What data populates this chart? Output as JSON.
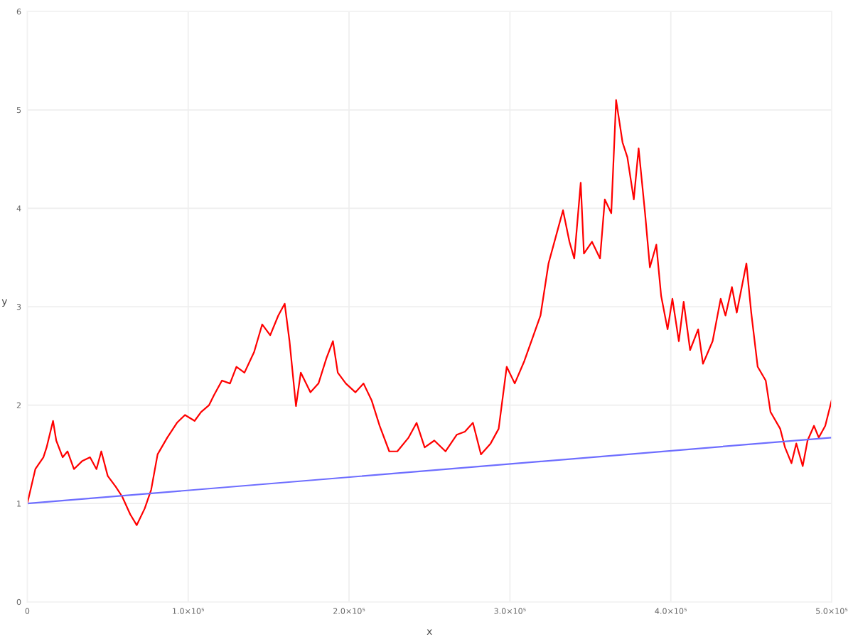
{
  "chart_data": {
    "type": "line",
    "xlabel": "x",
    "ylabel": "y",
    "xlim": [
      0,
      500000
    ],
    "ylim": [
      0,
      6
    ],
    "xticks": [
      0,
      {
        "value": 100000,
        "label": "1.0×10⁵"
      },
      {
        "value": 200000,
        "label": "2.0×10⁵"
      },
      {
        "value": 300000,
        "label": "3.0×10⁵"
      },
      {
        "value": 400000,
        "label": "4.0×10⁵"
      },
      {
        "value": 500000,
        "label": "5.0×10⁵"
      }
    ],
    "yticks": [
      0,
      1,
      2,
      3,
      4,
      5,
      6
    ],
    "grid": true,
    "legend": false,
    "marker": "none",
    "line_style": "solid",
    "series": [
      {
        "color": "#ff0000",
        "x": [
          0,
          5000,
          10000,
          12000,
          16000,
          18000,
          22000,
          25000,
          29000,
          34000,
          39000,
          43000,
          46000,
          50000,
          55000,
          59000,
          64000,
          68000,
          73000,
          77000,
          81000,
          87000,
          93000,
          98000,
          104000,
          108000,
          113000,
          116000,
          121000,
          126000,
          130000,
          135000,
          141000,
          146000,
          151000,
          156000,
          160000,
          163000,
          167000,
          170000,
          176000,
          181000,
          186000,
          190000,
          193000,
          198000,
          204000,
          209000,
          214000,
          219000,
          225000,
          230000,
          237000,
          242000,
          247000,
          253000,
          260000,
          267000,
          272000,
          277000,
          282000,
          288000,
          293000,
          298000,
          303000,
          309000,
          314000,
          319000,
          324000,
          330000,
          333000,
          337000,
          340000,
          344000,
          346000,
          351000,
          356000,
          359000,
          363000,
          366000,
          370000,
          373000,
          377000,
          380000,
          384000,
          387000,
          391000,
          394000,
          398000,
          401000,
          405000,
          408000,
          412000,
          417000,
          420000,
          426000,
          431000,
          434000,
          438000,
          441000,
          447000,
          450000,
          454000,
          459000,
          462000,
          468000,
          471000,
          475000,
          478000,
          482000,
          485000,
          489000,
          492000,
          496000,
          500000
        ],
        "values": [
          1.0,
          1.35,
          1.47,
          1.57,
          1.84,
          1.64,
          1.47,
          1.53,
          1.35,
          1.43,
          1.47,
          1.35,
          1.53,
          1.28,
          1.17,
          1.07,
          0.89,
          0.78,
          0.95,
          1.14,
          1.5,
          1.67,
          1.82,
          1.9,
          1.84,
          1.93,
          2.0,
          2.1,
          2.25,
          2.22,
          2.39,
          2.33,
          2.54,
          2.82,
          2.71,
          2.91,
          3.03,
          2.65,
          1.99,
          2.33,
          2.13,
          2.22,
          2.48,
          2.65,
          2.33,
          2.22,
          2.13,
          2.22,
          2.05,
          1.79,
          1.53,
          1.53,
          1.67,
          1.82,
          1.57,
          1.64,
          1.53,
          1.7,
          1.73,
          1.82,
          1.5,
          1.61,
          1.76,
          2.39,
          2.22,
          2.45,
          2.68,
          2.91,
          3.44,
          3.8,
          3.98,
          3.66,
          3.49,
          4.26,
          3.54,
          3.66,
          3.49,
          4.09,
          3.95,
          5.1,
          4.67,
          4.52,
          4.09,
          4.61,
          3.95,
          3.4,
          3.63,
          3.11,
          2.77,
          3.08,
          2.65,
          3.05,
          2.56,
          2.77,
          2.42,
          2.65,
          3.08,
          2.91,
          3.2,
          2.94,
          3.44,
          2.94,
          2.39,
          2.25,
          1.93,
          1.76,
          1.57,
          1.41,
          1.61,
          1.38,
          1.64,
          1.79,
          1.67,
          1.79,
          2.05
        ]
      },
      {
        "color": "#6e6eff",
        "x": [
          0,
          500000
        ],
        "values": [
          1.0,
          1.67
        ]
      }
    ]
  }
}
